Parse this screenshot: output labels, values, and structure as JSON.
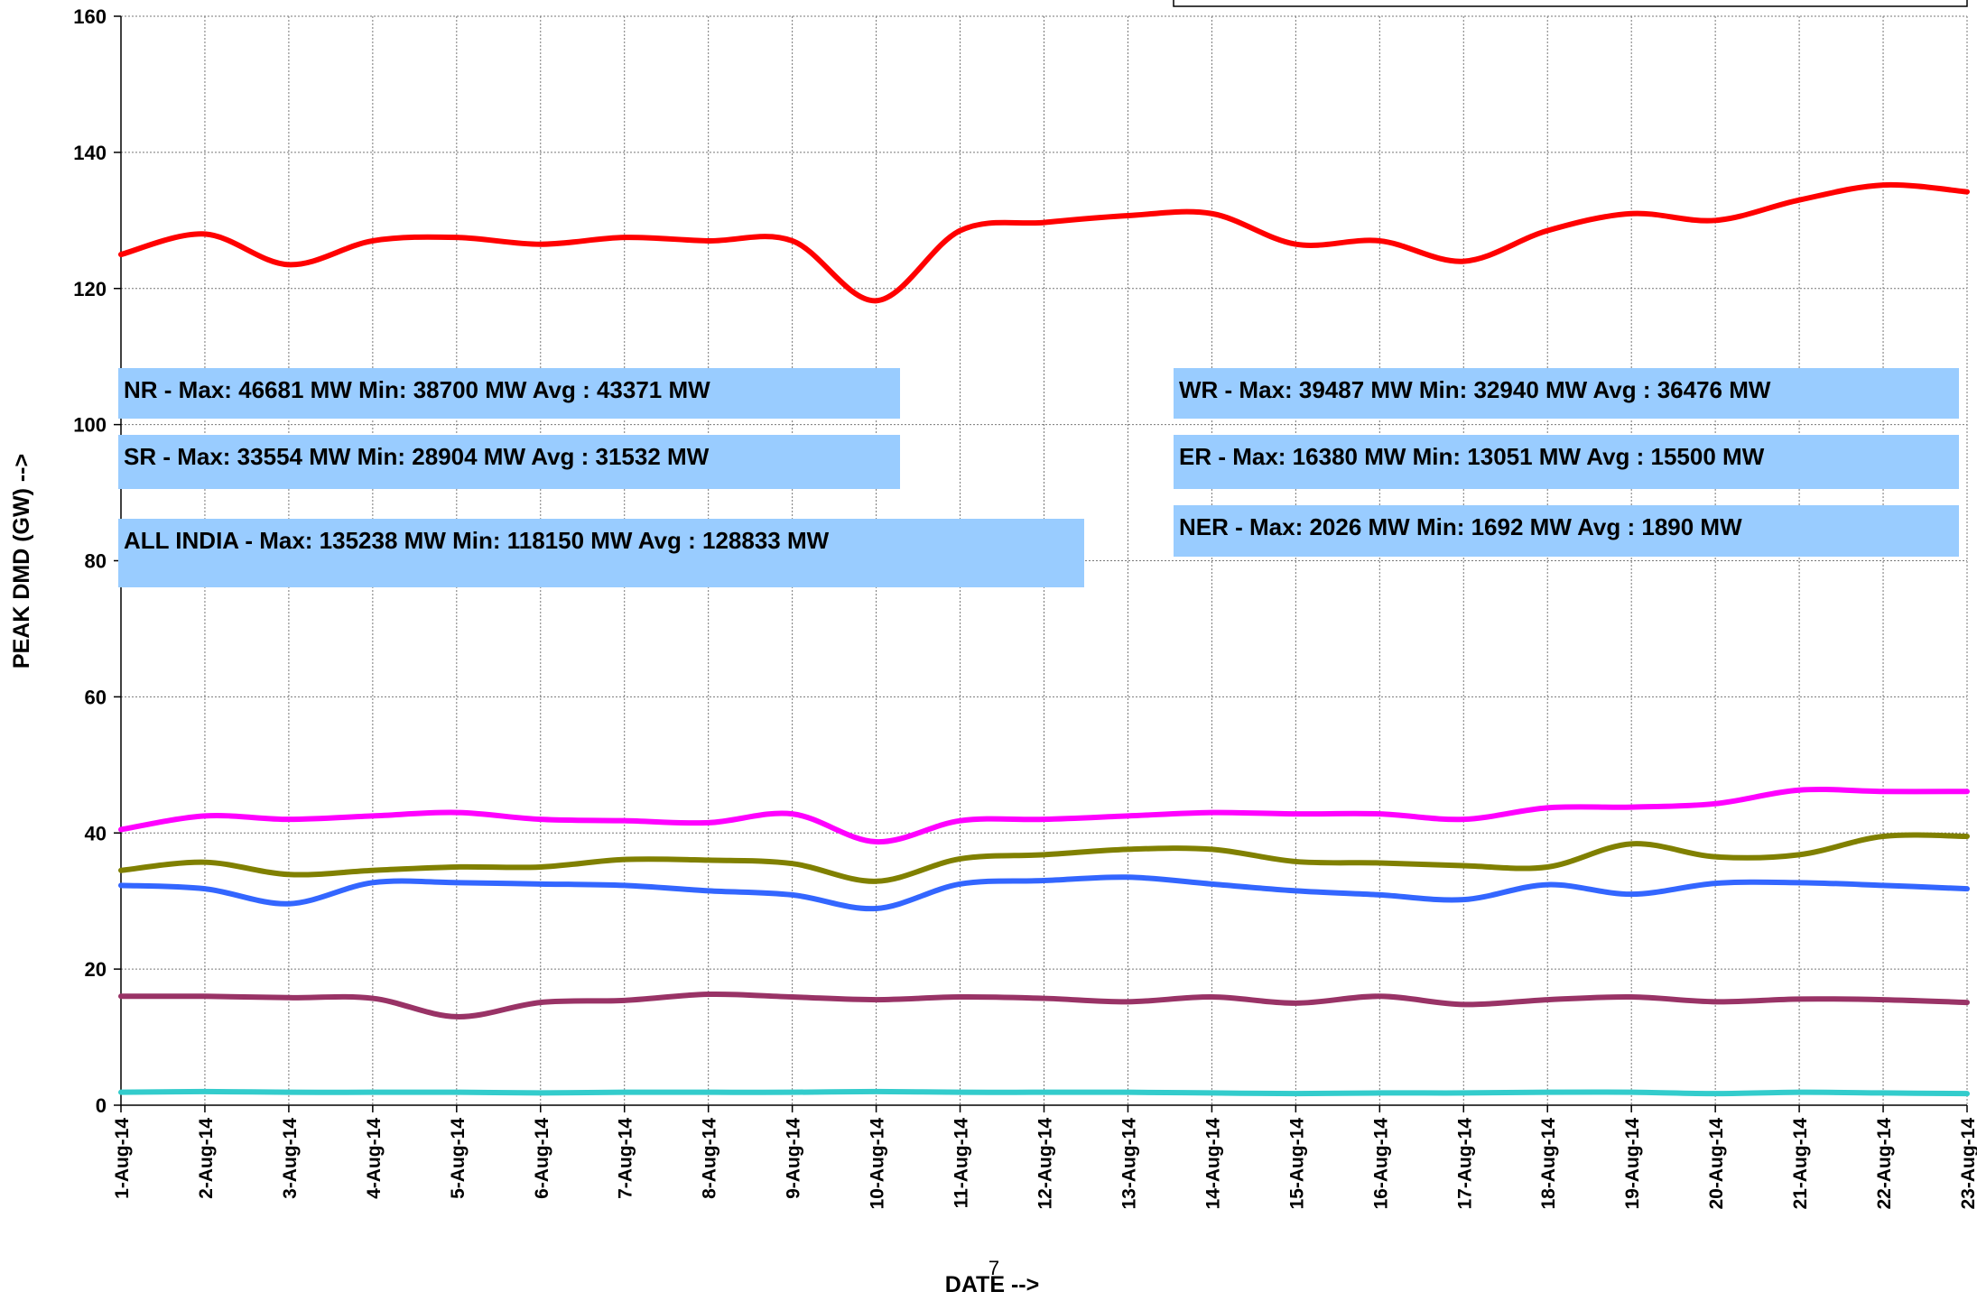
{
  "chart_data": {
    "type": "line",
    "x_label": "DATE -->",
    "y_label": "PEAK DMD (GW) -->",
    "page_number": "7",
    "categories": [
      "1-Aug-14",
      "2-Aug-14",
      "3-Aug-14",
      "4-Aug-14",
      "5-Aug-14",
      "6-Aug-14",
      "7-Aug-14",
      "8-Aug-14",
      "9-Aug-14",
      "10-Aug-14",
      "11-Aug-14",
      "12-Aug-14",
      "13-Aug-14",
      "14-Aug-14",
      "15-Aug-14",
      "16-Aug-14",
      "17-Aug-14",
      "18-Aug-14",
      "19-Aug-14",
      "20-Aug-14",
      "21-Aug-14",
      "22-Aug-14",
      "23-Aug-14"
    ],
    "ylim": [
      0,
      160
    ],
    "yticks": [
      0,
      20,
      40,
      60,
      80,
      100,
      120,
      140,
      160
    ],
    "grid": true,
    "series": [
      {
        "color": "#ff0000",
        "values": [
          125,
          128,
          123.5,
          127,
          127.5,
          126.5,
          127.5,
          127,
          127,
          118.2,
          128.5,
          129.7,
          130.7,
          131,
          126.5,
          127,
          124,
          128.5,
          131,
          130,
          133,
          135.2,
          134.2
        ]
      },
      {
        "color": "#ff00ff",
        "values": [
          40.5,
          42.5,
          42,
          42.5,
          43,
          42,
          41.8,
          41.5,
          42.8,
          38.7,
          41.8,
          42,
          42.5,
          43,
          42.8,
          42.8,
          42,
          43.7,
          43.8,
          44.3,
          46.3,
          46.1,
          46.1
        ]
      },
      {
        "color": "#808000",
        "values": [
          34.5,
          35.7,
          33.9,
          34.5,
          35,
          35,
          36.1,
          36,
          35.5,
          32.9,
          36.2,
          36.8,
          37.6,
          37.6,
          35.8,
          35.6,
          35.2,
          35,
          38.4,
          36.5,
          36.8,
          39.5,
          39.5
        ]
      },
      {
        "color": "#3366ff",
        "values": [
          32.3,
          31.8,
          29.6,
          32.7,
          32.7,
          32.5,
          32.3,
          31.5,
          30.9,
          28.9,
          32.5,
          33,
          33.5,
          32.5,
          31.5,
          30.9,
          30.2,
          32.4,
          31,
          32.6,
          32.7,
          32.3,
          31.8
        ]
      },
      {
        "color": "#993366",
        "values": [
          16,
          16,
          15.8,
          15.7,
          13,
          15.1,
          15.4,
          16.3,
          15.9,
          15.5,
          15.9,
          15.7,
          15.2,
          15.9,
          15,
          16,
          14.8,
          15.5,
          15.9,
          15.2,
          15.6,
          15.5,
          15.1
        ]
      },
      {
        "color": "#33cccc",
        "values": [
          1.9,
          2,
          1.9,
          1.9,
          1.9,
          1.8,
          1.9,
          1.9,
          1.9,
          2.0,
          1.9,
          1.9,
          1.9,
          1.8,
          1.7,
          1.8,
          1.8,
          1.9,
          1.9,
          1.7,
          1.9,
          1.8,
          1.7
        ]
      }
    ],
    "annotations": [
      "NR - Max: 46681 MW Min: 38700 MW Avg : 43371 MW",
      "SR - Max: 33554 MW Min: 28904 MW Avg : 31532 MW",
      "ALL INDIA - Max: 135238 MW Min: 118150 MW Avg : 128833 MW",
      "WR - Max: 39487 MW Min: 32940 MW Avg : 36476 MW",
      "ER - Max: 16380 MW Min: 13051 MW Avg : 15500 MW",
      "NER - Max: 2026 MW Min: 1692 MW Avg : 1890 MW"
    ]
  }
}
